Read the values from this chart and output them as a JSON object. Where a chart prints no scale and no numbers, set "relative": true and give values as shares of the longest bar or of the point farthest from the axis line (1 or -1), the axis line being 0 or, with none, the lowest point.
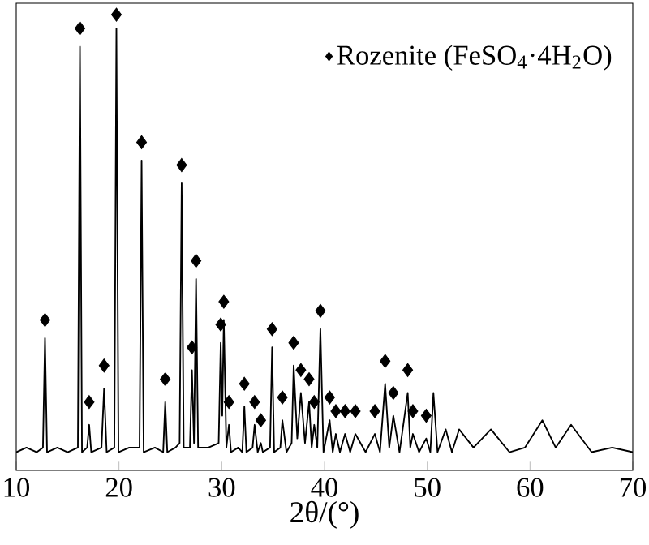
{
  "chart_data": {
    "type": "line",
    "relative": true,
    "xlabel": "2θ/(°)",
    "xlim": [
      10,
      70
    ],
    "xticks": [
      10,
      20,
      30,
      40,
      50,
      60,
      70
    ],
    "tick_labels": "x",
    "grid": false,
    "legend": "top right",
    "series": [
      {
        "color": "#000000",
        "marker": "none",
        "line_style": "solid",
        "x": [
          10,
          11,
          12,
          12.6,
          12.8,
          13.0,
          14,
          15,
          16.0,
          16.2,
          16.4,
          16.9,
          17.1,
          17.3,
          18.3,
          18.55,
          18.8,
          19.55,
          19.75,
          19.95,
          21,
          22.0,
          22.2,
          22.4,
          23.5,
          24.3,
          24.5,
          24.7,
          25.5,
          25.9,
          26.1,
          26.3,
          26.9,
          27.1,
          27.3,
          27.5,
          27.7,
          28.7,
          29.7,
          29.9,
          30.05,
          30.2,
          30.45,
          30.7,
          30.9,
          31.6,
          32.0,
          32.2,
          32.4,
          33.0,
          33.2,
          33.5,
          33.8,
          34.0,
          34.7,
          34.9,
          35.1,
          35.7,
          35.9,
          36.3,
          36.8,
          37.0,
          37.35,
          37.7,
          38.1,
          38.5,
          38.75,
          39.0,
          39.3,
          39.6,
          39.9,
          40.5,
          40.8,
          41.1,
          41.5,
          42.0,
          42.5,
          43.0,
          44.0,
          44.9,
          45.4,
          45.9,
          46.3,
          46.7,
          47.3,
          48.1,
          48.35,
          48.6,
          49.2,
          49.9,
          50.3,
          50.6,
          51.0,
          51.8,
          52.4,
          53.1,
          54.5,
          56.2,
          58,
          59.5,
          61.2,
          62.5,
          64.0,
          66,
          68,
          70
        ],
        "values": [
          0.04,
          0.05,
          0.04,
          0.05,
          0.29,
          0.04,
          0.05,
          0.04,
          0.05,
          0.93,
          0.04,
          0.05,
          0.1,
          0.04,
          0.05,
          0.18,
          0.04,
          0.05,
          0.97,
          0.04,
          0.05,
          0.05,
          0.68,
          0.04,
          0.05,
          0.04,
          0.15,
          0.04,
          0.05,
          0.06,
          0.63,
          0.05,
          0.05,
          0.22,
          0.06,
          0.42,
          0.05,
          0.05,
          0.06,
          0.28,
          0.12,
          0.33,
          0.05,
          0.1,
          0.04,
          0.05,
          0.04,
          0.14,
          0.04,
          0.05,
          0.1,
          0.04,
          0.06,
          0.04,
          0.05,
          0.27,
          0.04,
          0.05,
          0.11,
          0.04,
          0.06,
          0.23,
          0.07,
          0.17,
          0.06,
          0.15,
          0.05,
          0.1,
          0.05,
          0.31,
          0.04,
          0.11,
          0.04,
          0.08,
          0.04,
          0.08,
          0.04,
          0.08,
          0.04,
          0.08,
          0.04,
          0.19,
          0.05,
          0.12,
          0.04,
          0.17,
          0.05,
          0.08,
          0.04,
          0.07,
          0.04,
          0.17,
          0.04,
          0.09,
          0.04,
          0.09,
          0.05,
          0.09,
          0.04,
          0.05,
          0.11,
          0.05,
          0.1,
          0.04,
          0.05,
          0.04
        ]
      },
      {
        "type": "scatter",
        "name": "Rozenite (FeSO$_{4}$·4H$_{2}$O)",
        "color": "#000000",
        "marker": "diamond",
        "x": [
          12.8,
          16.2,
          17.1,
          18.55,
          19.75,
          22.2,
          24.5,
          26.1,
          27.1,
          27.5,
          29.9,
          30.2,
          30.7,
          32.2,
          33.2,
          33.8,
          34.9,
          35.9,
          37.0,
          37.7,
          38.5,
          39.0,
          39.6,
          40.5,
          41.1,
          42.0,
          43.0,
          44.9,
          45.9,
          46.7,
          48.1,
          48.6,
          49.9
        ],
        "values": [
          0.33,
          0.97,
          0.15,
          0.23,
          1.0,
          0.72,
          0.2,
          0.67,
          0.27,
          0.46,
          0.32,
          0.37,
          0.15,
          0.19,
          0.15,
          0.11,
          0.31,
          0.16,
          0.28,
          0.22,
          0.2,
          0.15,
          0.35,
          0.16,
          0.13,
          0.13,
          0.13,
          0.13,
          0.24,
          0.17,
          0.22,
          0.13,
          0.12
        ]
      }
    ]
  }
}
